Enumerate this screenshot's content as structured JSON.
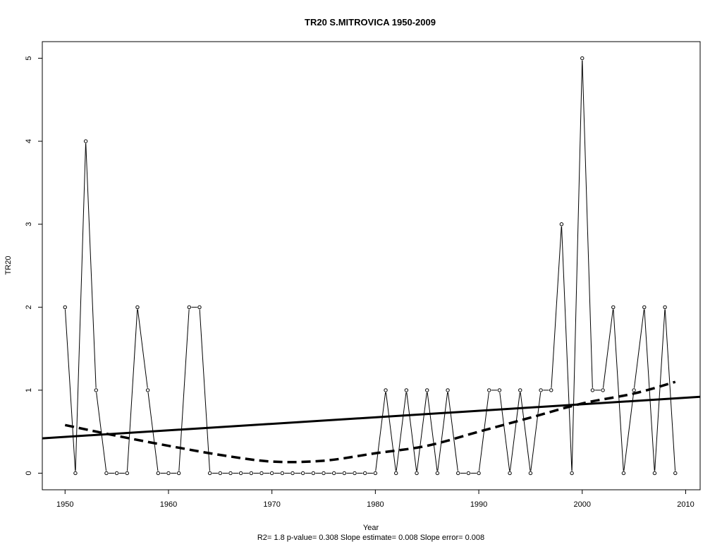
{
  "chart_data": {
    "type": "line",
    "title": "TR20   S.MITROVICA 1950-2009",
    "xlabel": "Year",
    "ylabel": "TR20",
    "subtitle": "R2= 1.8  p-value= 0.308  Slope estimate= 0.008  Slope error= 0.008",
    "xlim": [
      1947.8,
      2011.4
    ],
    "ylim": [
      -0.2,
      5.2
    ],
    "x_ticks": [
      1950,
      1960,
      1970,
      1980,
      1990,
      2000,
      2010
    ],
    "y_ticks": [
      0,
      1,
      2,
      3,
      4,
      5
    ],
    "grid": false,
    "legend": "none",
    "series": [
      {
        "style": "points-and-thin-line",
        "x": [
          1950,
          1951,
          1952,
          1953,
          1954,
          1955,
          1956,
          1957,
          1958,
          1959,
          1960,
          1961,
          1962,
          1963,
          1964,
          1965,
          1966,
          1967,
          1968,
          1969,
          1970,
          1971,
          1972,
          1973,
          1974,
          1975,
          1976,
          1977,
          1978,
          1979,
          1980,
          1981,
          1982,
          1983,
          1984,
          1985,
          1986,
          1987,
          1988,
          1989,
          1990,
          1991,
          1992,
          1993,
          1994,
          1995,
          1996,
          1997,
          1998,
          1999,
          2000,
          2001,
          2002,
          2003,
          2004,
          2005,
          2006,
          2007,
          2008,
          2009
        ],
        "values": [
          2,
          0,
          4,
          1,
          0,
          0,
          0,
          2,
          1,
          0,
          0,
          0,
          2,
          2,
          0,
          0,
          0,
          0,
          0,
          0,
          0,
          0,
          0,
          0,
          0,
          0,
          0,
          0,
          0,
          0,
          0,
          1,
          0,
          1,
          0,
          1,
          0,
          1,
          0,
          0,
          0,
          1,
          1,
          0,
          1,
          0,
          1,
          1,
          3,
          0,
          5,
          1,
          1,
          2,
          0,
          1,
          2,
          0,
          2,
          0
        ]
      },
      {
        "style": "linear-trend-thick-solid",
        "x": [
          1947.8,
          2011.4
        ],
        "values": [
          0.42,
          0.92
        ]
      },
      {
        "style": "smooth-thick-dashed",
        "x": [
          1950,
          1955,
          1960,
          1965,
          1970,
          1975,
          1980,
          1985,
          1990,
          1995,
          2000,
          2005,
          2009
        ],
        "values": [
          0.58,
          0.45,
          0.33,
          0.22,
          0.14,
          0.15,
          0.24,
          0.33,
          0.5,
          0.67,
          0.84,
          0.96,
          1.1
        ]
      }
    ]
  }
}
